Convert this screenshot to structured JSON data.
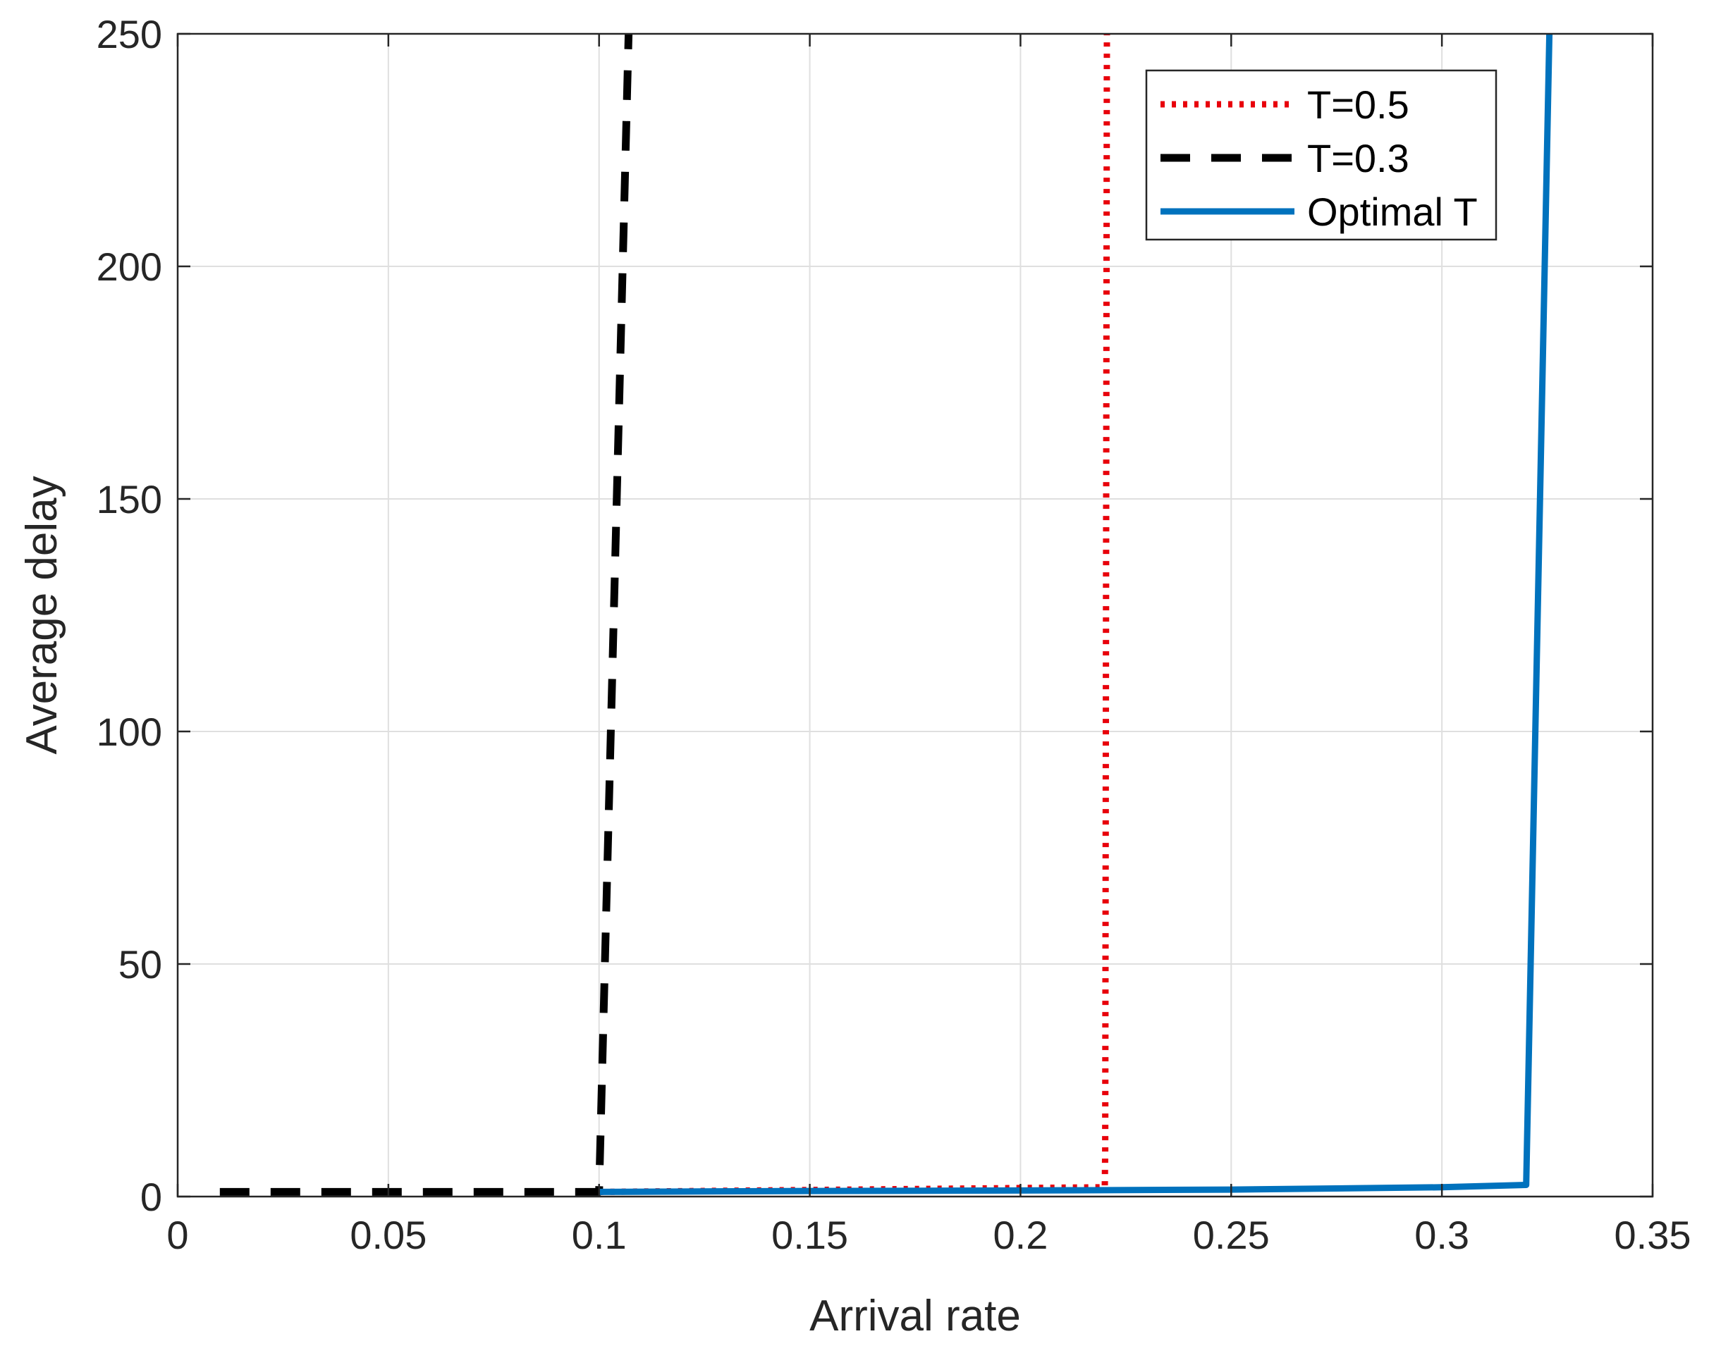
{
  "chart_data": {
    "type": "line",
    "title": "",
    "xlabel": "Arrival rate",
    "ylabel": "Average delay",
    "xlim": [
      0,
      0.35
    ],
    "ylim": [
      0,
      250
    ],
    "xticks": [
      0,
      0.05,
      0.1,
      0.15,
      0.2,
      0.25,
      0.3,
      0.35
    ],
    "yticks": [
      0,
      50,
      100,
      150,
      200,
      250
    ],
    "grid": true,
    "legend_position": "top-right",
    "series": [
      {
        "name": "T=0.5",
        "color": "#e8000b",
        "style": "dotted",
        "x": [
          0.1,
          0.22,
          0.2201,
          0.2205
        ],
        "y": [
          1.0,
          2.0,
          10,
          250
        ]
      },
      {
        "name": "T=0.3",
        "color": "#000000",
        "style": "dashed",
        "x": [
          0.01,
          0.099,
          0.1,
          0.107
        ],
        "y": [
          1.0,
          1.0,
          1.0,
          250
        ]
      },
      {
        "name": "Optimal T",
        "color": "#0072bd",
        "style": "solid",
        "x": [
          0.1,
          0.15,
          0.2,
          0.25,
          0.3,
          0.32,
          0.3255
        ],
        "y": [
          1.0,
          1.2,
          1.3,
          1.5,
          2.0,
          2.5,
          250
        ]
      }
    ]
  }
}
